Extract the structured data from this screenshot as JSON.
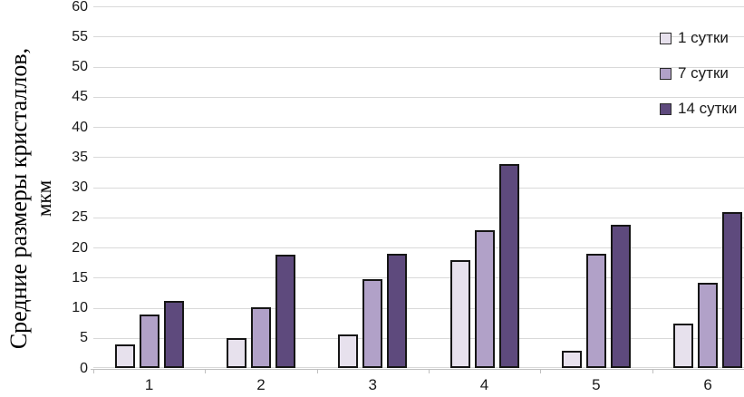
{
  "chart_data": {
    "type": "bar",
    "title": "",
    "ylabel_line1": "Средние размеры кристаллов,",
    "ylabel_line2": "мкм",
    "categories": [
      "1",
      "2",
      "3",
      "4",
      "5",
      "6"
    ],
    "series": [
      {
        "name": "1 сутки",
        "color": "#e7e1ed",
        "values": [
          3.9,
          5.0,
          5.5,
          17.9,
          2.9,
          7.3
        ]
      },
      {
        "name": "7 сутки",
        "color": "#b1a1c8",
        "values": [
          8.8,
          10.1,
          14.8,
          22.8,
          18.9,
          14.2
        ]
      },
      {
        "name": "14 сутки",
        "color": "#5e4a7d",
        "values": [
          11.1,
          18.8,
          19.0,
          33.8,
          23.7,
          25.8
        ]
      }
    ],
    "ylim": [
      0,
      60
    ],
    "yticks": [
      0,
      5,
      10,
      15,
      20,
      25,
      30,
      35,
      40,
      45,
      50,
      55,
      60
    ],
    "grid": true,
    "legend_position": "top-right",
    "colors": {
      "bar_border": "#161616",
      "gridline": "#d9d9d9",
      "axis_line": "#bfbfbf",
      "text": "#1a1a1a"
    }
  }
}
